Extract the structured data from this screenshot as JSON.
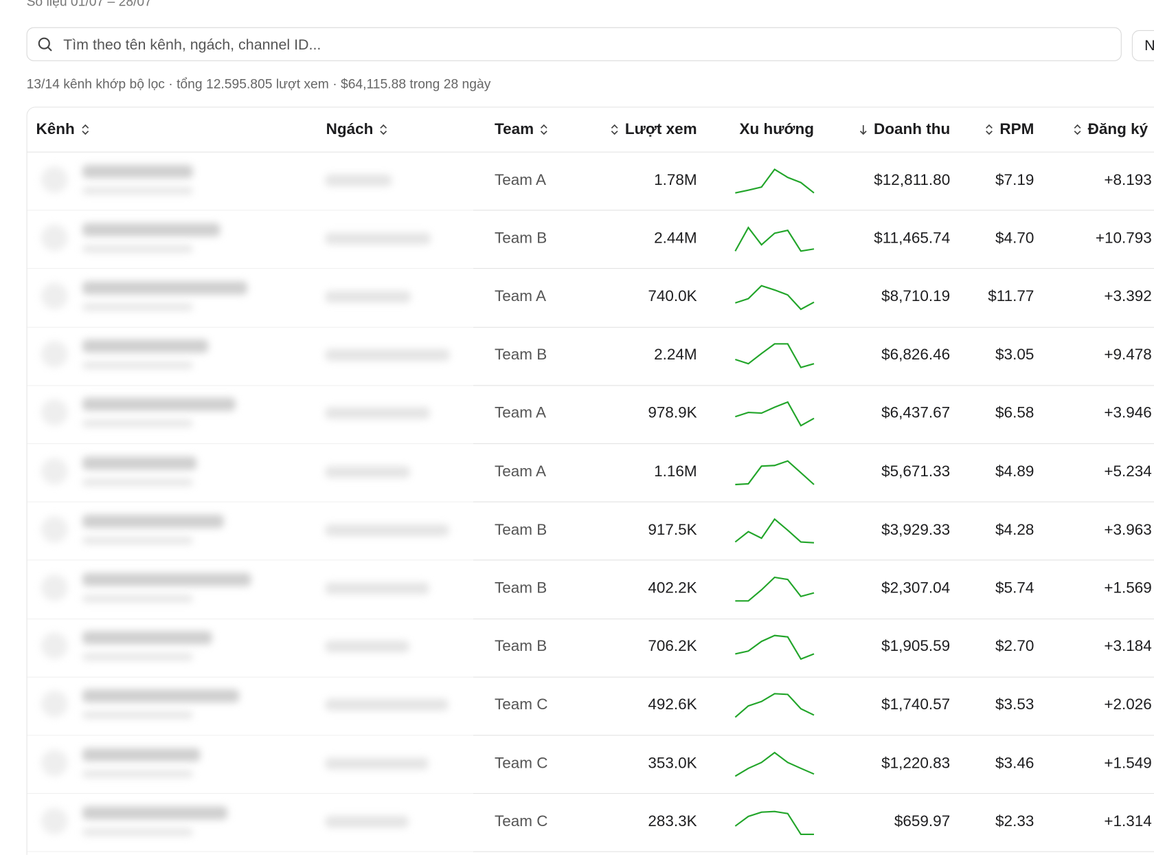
{
  "header": {
    "period": "Số liệu 01/07 – 28/07",
    "search_placeholder": "Tìm theo tên kênh, ngách, channel ID...",
    "button": "N",
    "summary": "13/14 kênh khớp bộ lọc · tổng 12.595.805 lượt xem · $64,115.88 trong 28 ngày"
  },
  "table": {
    "columns": [
      "Kênh",
      "Ngách",
      "Team",
      "Lượt xem",
      "Xu hướng",
      "Doanh thu",
      "RPM",
      "Đăng ký"
    ],
    "rows": [
      {
        "team": "Team A",
        "views": "1.78M",
        "trend": [
          0,
          12,
          25,
          100,
          66,
          44,
          0
        ],
        "revenue": "$12,811.80",
        "rpm": "$7.19",
        "subs": "+8.193"
      },
      {
        "team": "Team B",
        "views": "2.44M",
        "trend": [
          0,
          100,
          27,
          76,
          88,
          0,
          9
        ],
        "revenue": "$11,465.74",
        "rpm": "$4.70",
        "subs": "+10.793"
      },
      {
        "team": "Team A",
        "views": "740.0K",
        "trend": [
          27,
          45,
          100,
          82,
          61,
          0,
          30
        ],
        "revenue": "$8,710.19",
        "rpm": "$11.77",
        "subs": "+3.392"
      },
      {
        "team": "Team B",
        "views": "2.24M",
        "trend": [
          34,
          16,
          59,
          100,
          100,
          0,
          16
        ],
        "revenue": "$6,826.46",
        "rpm": "$3.05",
        "subs": "+9.478"
      },
      {
        "team": "Team A",
        "views": "978.9K",
        "trend": [
          38,
          56,
          53,
          78,
          100,
          0,
          31
        ],
        "revenue": "$6,437.67",
        "rpm": "$6.58",
        "subs": "+3.946"
      },
      {
        "team": "Team A",
        "views": "1.16M",
        "trend": [
          0,
          3,
          78,
          81,
          100,
          50,
          0
        ],
        "revenue": "$5,671.33",
        "rpm": "$4.89",
        "subs": "+5.234"
      },
      {
        "team": "Team B",
        "views": "917.5K",
        "trend": [
          3,
          47,
          19,
          100,
          53,
          3,
          0
        ],
        "revenue": "$3,929.33",
        "rpm": "$4.28",
        "subs": "+3.963"
      },
      {
        "team": "Team B",
        "views": "402.2K",
        "trend": [
          0,
          0,
          47,
          100,
          91,
          19,
          34
        ],
        "revenue": "$2,307.04",
        "rpm": "$5.74",
        "subs": "+1.569"
      },
      {
        "team": "Team B",
        "views": "706.2K",
        "trend": [
          22,
          34,
          75,
          100,
          94,
          0,
          22
        ],
        "revenue": "$1,905.59",
        "rpm": "$2.70",
        "subs": "+3.184"
      },
      {
        "team": "Team C",
        "views": "492.6K",
        "trend": [
          0,
          48,
          67,
          100,
          97,
          36,
          9
        ],
        "revenue": "$1,740.57",
        "rpm": "$3.53",
        "subs": "+2.026"
      },
      {
        "team": "Team C",
        "views": "353.0K",
        "trend": [
          0,
          33,
          58,
          100,
          58,
          33,
          9
        ],
        "revenue": "$1,220.83",
        "rpm": "$3.46",
        "subs": "+1.549"
      },
      {
        "team": "Team C",
        "views": "283.3K",
        "trend": [
          35,
          76,
          94,
          97,
          88,
          0,
          0
        ],
        "revenue": "$659.97",
        "rpm": "$2.33",
        "subs": "+1.314"
      }
    ]
  }
}
